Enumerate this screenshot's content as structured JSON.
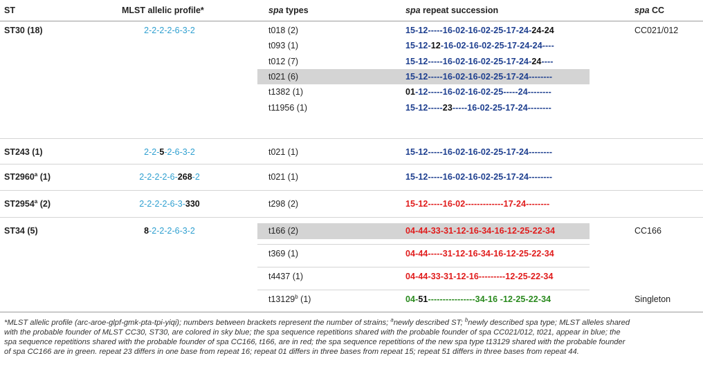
{
  "headers": {
    "st": "ST",
    "mlst": "MLST allelic profile*",
    "spa_types_it": "spa",
    "spa_types_rest": " types",
    "succ_it": "spa",
    "succ_rest": " repeat succession",
    "cc_it": "spa",
    "cc_rest": " CC"
  },
  "groups": [
    {
      "st": "ST30 (18)",
      "mlst_parts": [
        {
          "t": "2-2-2-2-6-3-2",
          "c": "sky"
        }
      ],
      "cc": "CC021/012",
      "rows": [
        {
          "type": "t018 (2)",
          "rep": [
            {
              "t": "15-12-----16-02-16-02-25-17-24-",
              "c": "blue"
            },
            {
              "t": "24-24",
              "c": "blk"
            }
          ]
        },
        {
          "type": "t093 (1)",
          "rep": [
            {
              "t": "15-12-",
              "c": "blue"
            },
            {
              "t": "12",
              "c": "blk"
            },
            {
              "t": "-16-02-16-02-25-17-24-24----",
              "c": "blue"
            }
          ]
        },
        {
          "type": "t012 (7)",
          "rep": [
            {
              "t": "15-12-----16-02-16-02-25-17-24-",
              "c": "blue"
            },
            {
              "t": "24",
              "c": "blk"
            },
            {
              "t": "----",
              "c": "blue"
            }
          ]
        },
        {
          "type": "t021 (6)",
          "rep": [
            {
              "t": "15-12-----16-02-16-02-25-17-24--------",
              "c": "blue"
            }
          ],
          "highlight": true
        },
        {
          "type": "t1382 (1)",
          "rep": [
            {
              "t": "01",
              "c": "blk"
            },
            {
              "t": "-12-----16-02-16-02-25-----24--------",
              "c": "blue"
            }
          ]
        },
        {
          "type": "t11956 (1)",
          "rep": [
            {
              "t": "15-12-----",
              "c": "blue"
            },
            {
              "t": "23",
              "c": "blk"
            },
            {
              "t": "-----16-02-25-17-24--------",
              "c": "blue"
            }
          ]
        }
      ]
    },
    {
      "st": "ST243 (1)",
      "mlst_parts": [
        {
          "t": "2-2-",
          "c": "sky"
        },
        {
          "t": "5",
          "c": "blk"
        },
        {
          "t": "-2-6-3-2",
          "c": "sky"
        }
      ],
      "cc": "",
      "rows": [
        {
          "type": "t021 (1)",
          "rep": [
            {
              "t": "15-12-----16-02-16-02-25-17-24--------",
              "c": "blue"
            }
          ]
        }
      ]
    },
    {
      "st": "ST2960",
      "st_sup": "a",
      "st_tail": " (1)",
      "mlst_parts": [
        {
          "t": "2-2-2-2-6-",
          "c": "sky"
        },
        {
          "t": "268",
          "c": "blk"
        },
        {
          "t": "-2",
          "c": "sky"
        }
      ],
      "cc": "",
      "rows": [
        {
          "type": "t021 (1)",
          "rep": [
            {
              "t": "15-12-----16-02-16-02-25-17-24--------",
              "c": "blue"
            }
          ]
        }
      ]
    },
    {
      "st": "ST2954",
      "st_sup": "a",
      "st_tail": " (2)",
      "mlst_parts": [
        {
          "t": "2-2-2-2-6-3-",
          "c": "sky"
        },
        {
          "t": "330",
          "c": "blk"
        }
      ],
      "cc": "",
      "rows": [
        {
          "type": "t298 (2)",
          "rep": [
            {
              "t": "15-12-----16-02-------------17-24--------",
              "c": "red"
            }
          ]
        }
      ]
    },
    {
      "st": "ST34 (5)",
      "mlst_parts": [
        {
          "t": "8",
          "c": "blk"
        },
        {
          "t": "-2-2-2-6-3-2",
          "c": "sky"
        }
      ],
      "cc": "CC166",
      "rows": [
        {
          "type": "t166 (2)",
          "rep": [
            {
              "t": "04-44-33-31-12-16-34-16-12-25-22-34",
              "c": "red"
            }
          ],
          "highlight": true
        },
        {
          "type": "t369 (1)",
          "rep": [
            {
              "t": "04-44-----31-12-16-34-16-12-25-22-34",
              "c": "red"
            }
          ]
        },
        {
          "type": "t4437 (1)",
          "rep": [
            {
              "t": "04-44-33-31-12-16---------12-25-22-34",
              "c": "red"
            }
          ]
        },
        {
          "type": "t13129",
          "type_sup": "b",
          "type_tail": " (1)",
          "cc": "Singleton",
          "rep": [
            {
              "t": "04-",
              "c": "green"
            },
            {
              "t": "51",
              "c": "blk"
            },
            {
              "t": "----------------34-16 -12-25-22-34",
              "c": "green"
            }
          ]
        }
      ]
    }
  ],
  "footnote": {
    "l1a": "*MLST allelic profile (arc-aroe-glpf-gmk-pta-tpi-yiqi); numbers between brackets represent the number of strains; ",
    "l1b_sup": "a",
    "l1b": "newly described ST; ",
    "l1c_sup": "b",
    "l1c": "newly described spa type; MLST alleles shared",
    "l2": "with the probable founder of MLST CC30, ST30, are colored in sky blue; the spa sequence repetitions shared with the probable founder of spa CC021/012, t021, appear in blue; the",
    "l3": "spa sequence repetitions shared with the probable founder of spa CC166, t166, are in red; the spa sequence repetitions of the new spa type t13129 shared with the probable founder",
    "l4": "of spa CC166 are in green. repeat 23 differs in one base from repeat 16; repeat 01 differs in three bases from repeat 15; repeat 51 differs in three bases from repeat 44."
  }
}
